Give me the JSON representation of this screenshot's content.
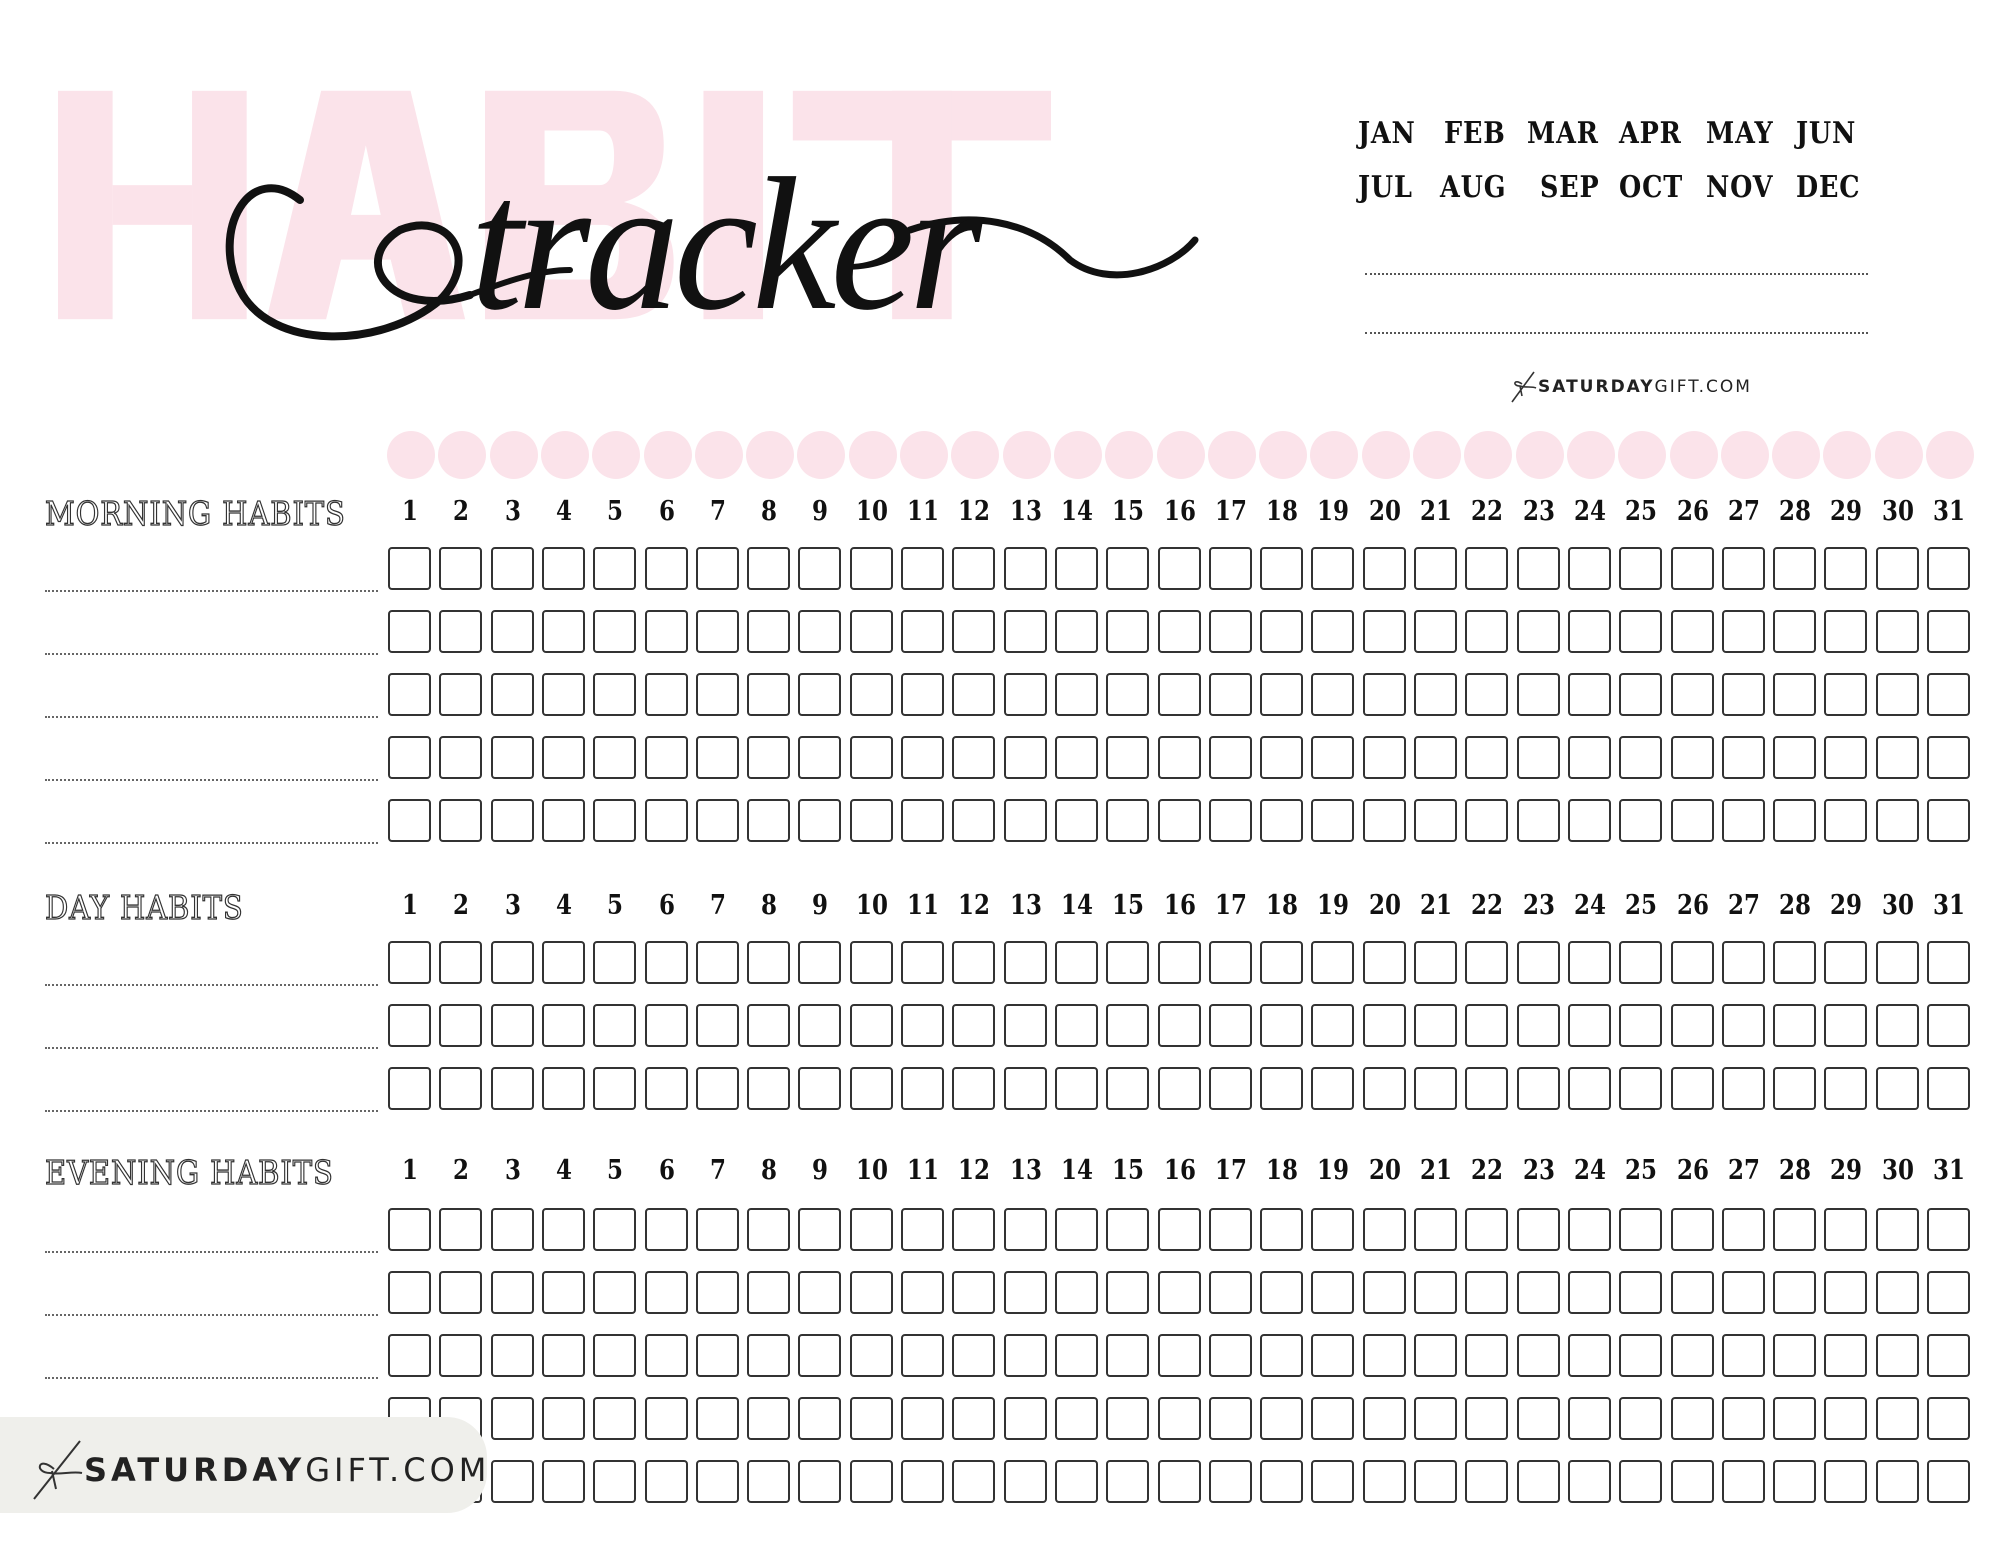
{
  "header": {
    "watermark": "HABIT",
    "title": "tracker",
    "months_row1": [
      "JAN",
      "FEB",
      "MAR",
      "APR",
      "MAY",
      "JUN"
    ],
    "months_row2": [
      "JUL",
      "AUG",
      "SEP",
      "OCT",
      "NOV",
      "DEC"
    ],
    "blank_lines": [
      "",
      ""
    ],
    "logo_bold": "SATURDAY",
    "logo_light": "GIFT.COM"
  },
  "days": [
    "1",
    "2",
    "3",
    "4",
    "5",
    "6",
    "7",
    "8",
    "9",
    "10",
    "11",
    "12",
    "13",
    "14",
    "15",
    "16",
    "17",
    "18",
    "19",
    "20",
    "21",
    "22",
    "23",
    "24",
    "25",
    "26",
    "27",
    "28",
    "29",
    "30",
    "31"
  ],
  "sections": [
    {
      "label": "MORNING HABITS",
      "habits": [
        "",
        "",
        "",
        "",
        ""
      ]
    },
    {
      "label": "DAY HABITS",
      "habits": [
        "",
        "",
        ""
      ]
    },
    {
      "label": "EVENING HABITS",
      "habits": [
        "",
        "",
        "",
        "",
        ""
      ]
    }
  ],
  "footer": {
    "logo_bold": "SATURDAY",
    "logo_light": "GIFT.COM"
  },
  "colors": {
    "accent_pink": "#fbe3ea",
    "ink": "#111111",
    "footer_bg": "#efefeb"
  }
}
